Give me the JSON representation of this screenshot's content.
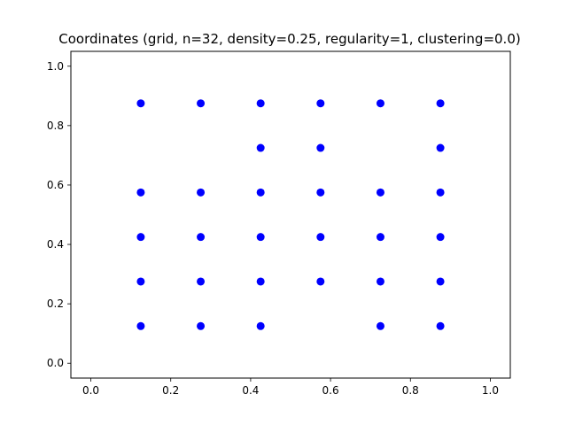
{
  "chart_data": {
    "type": "scatter",
    "title": "Coordinates (grid, n=32, density=0.25, regularity=1, clustering=0.0)",
    "xlabel": "",
    "ylabel": "",
    "xlim": [
      -0.05,
      1.05
    ],
    "ylim": [
      -0.05,
      1.05
    ],
    "xticks": [
      0.0,
      0.2,
      0.4,
      0.6,
      0.8,
      1.0
    ],
    "xtick_labels": [
      "0.0",
      "0.2",
      "0.4",
      "0.6",
      "0.8",
      "1.0"
    ],
    "yticks": [
      0.0,
      0.2,
      0.4,
      0.6,
      0.8,
      1.0
    ],
    "ytick_labels": [
      "0.0",
      "0.2",
      "0.4",
      "0.6",
      "0.8",
      "1.0"
    ],
    "grid": false,
    "marker_color": "#0000ff",
    "points": [
      {
        "x": 0.125,
        "y": 0.875
      },
      {
        "x": 0.275,
        "y": 0.875
      },
      {
        "x": 0.425,
        "y": 0.875
      },
      {
        "x": 0.575,
        "y": 0.875
      },
      {
        "x": 0.725,
        "y": 0.875
      },
      {
        "x": 0.875,
        "y": 0.875
      },
      {
        "x": 0.425,
        "y": 0.725
      },
      {
        "x": 0.575,
        "y": 0.725
      },
      {
        "x": 0.875,
        "y": 0.725
      },
      {
        "x": 0.125,
        "y": 0.575
      },
      {
        "x": 0.275,
        "y": 0.575
      },
      {
        "x": 0.425,
        "y": 0.575
      },
      {
        "x": 0.575,
        "y": 0.575
      },
      {
        "x": 0.725,
        "y": 0.575
      },
      {
        "x": 0.875,
        "y": 0.575
      },
      {
        "x": 0.125,
        "y": 0.425
      },
      {
        "x": 0.275,
        "y": 0.425
      },
      {
        "x": 0.425,
        "y": 0.425
      },
      {
        "x": 0.575,
        "y": 0.425
      },
      {
        "x": 0.725,
        "y": 0.425
      },
      {
        "x": 0.875,
        "y": 0.425
      },
      {
        "x": 0.125,
        "y": 0.275
      },
      {
        "x": 0.275,
        "y": 0.275
      },
      {
        "x": 0.425,
        "y": 0.275
      },
      {
        "x": 0.575,
        "y": 0.275
      },
      {
        "x": 0.725,
        "y": 0.275
      },
      {
        "x": 0.875,
        "y": 0.275
      },
      {
        "x": 0.125,
        "y": 0.125
      },
      {
        "x": 0.275,
        "y": 0.125
      },
      {
        "x": 0.425,
        "y": 0.125
      },
      {
        "x": 0.725,
        "y": 0.125
      },
      {
        "x": 0.875,
        "y": 0.125
      }
    ]
  }
}
